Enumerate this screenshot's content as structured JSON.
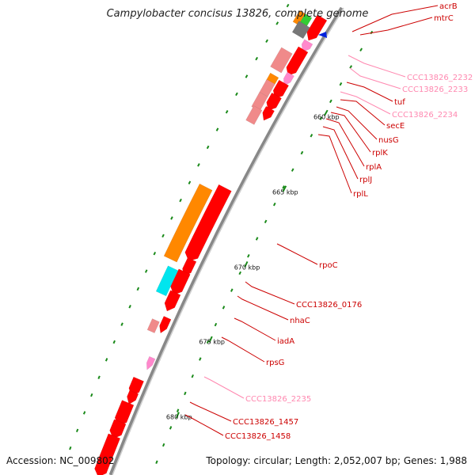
{
  "title": "Campylobacter concisus 13826, complete genome",
  "footer": {
    "accession": "Accession: NC_009802",
    "summary": "Topology: circular; Length: 2,052,007 bp; Genes: 1,988"
  },
  "ticks": [
    "660 kbp",
    "665 kbp",
    "670 kbp",
    "675 kbp",
    "680 kbp"
  ],
  "colors": {
    "cds": "#ff0000",
    "cds_light": "#f08a8a",
    "pink": "#ff88cc",
    "orange": "#ff8800",
    "cyan": "#00e5ee",
    "green": "#33cc33",
    "gray": "#777777",
    "blue": "#0022dd",
    "backbone": "#888888",
    "dots": "#1a8a1a",
    "label_red": "#cc0000",
    "label_pink": "#ff88b0"
  },
  "labels": [
    {
      "text": "acrB",
      "color": "red"
    },
    {
      "text": "mtrC",
      "color": "red"
    },
    {
      "text": "CCC13826_2232",
      "color": "pink"
    },
    {
      "text": "CCC13826_2233",
      "color": "pink"
    },
    {
      "text": "tuf",
      "color": "red"
    },
    {
      "text": "CCC13826_2234",
      "color": "pink"
    },
    {
      "text": "secE",
      "color": "red"
    },
    {
      "text": "nusG",
      "color": "red"
    },
    {
      "text": "rplK",
      "color": "red"
    },
    {
      "text": "rplA",
      "color": "red"
    },
    {
      "text": "rplJ",
      "color": "red"
    },
    {
      "text": "rplL",
      "color": "red"
    },
    {
      "text": "rpoC",
      "color": "red"
    },
    {
      "text": "CCC13826_0176",
      "color": "red"
    },
    {
      "text": "nhaC",
      "color": "red"
    },
    {
      "text": "iadA",
      "color": "red"
    },
    {
      "text": "rpsG",
      "color": "red"
    },
    {
      "text": "CCC13826_2235",
      "color": "pink"
    },
    {
      "text": "CCC13826_1457",
      "color": "red"
    },
    {
      "text": "CCC13826_1458",
      "color": "red"
    }
  ]
}
